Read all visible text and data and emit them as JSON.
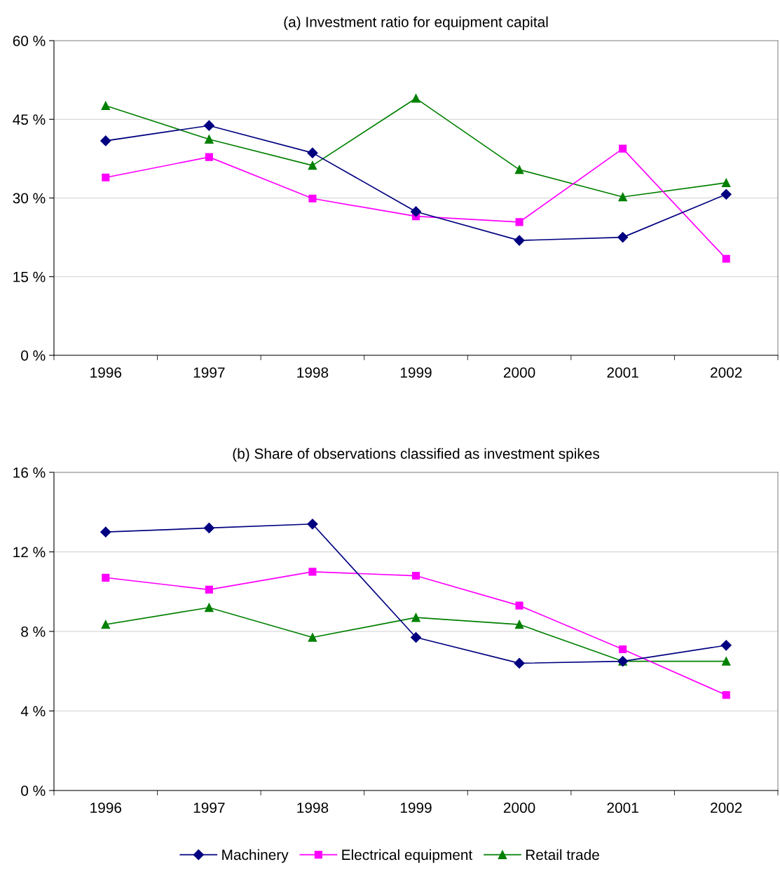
{
  "chart_data": [
    {
      "type": "line",
      "title": "(a) Investment ratio for equipment capital",
      "categories": [
        "1996",
        "1997",
        "1998",
        "1999",
        "2000",
        "2001",
        "2002"
      ],
      "ylim": [
        0,
        60
      ],
      "yticks": [
        {
          "value": 0,
          "label": "0 %"
        },
        {
          "value": 15,
          "label": "15 %"
        },
        {
          "value": 30,
          "label": "30 %"
        },
        {
          "value": 45,
          "label": "45 %"
        },
        {
          "value": 60,
          "label": "60 %"
        }
      ],
      "grid": "y",
      "line_style": "solid",
      "series": [
        {
          "color": "#000080",
          "marker": "diamond",
          "values": [
            40.9,
            43.8,
            38.6,
            27.4,
            21.9,
            22.5,
            30.7
          ]
        },
        {
          "color": "#ff00ff",
          "marker": "square",
          "values": [
            33.9,
            37.8,
            29.9,
            26.5,
            25.4,
            39.4,
            18.4
          ]
        },
        {
          "color": "#008000",
          "marker": "triangle",
          "values": [
            47.6,
            41.2,
            36.2,
            49.0,
            35.4,
            30.2,
            32.9
          ]
        }
      ]
    },
    {
      "type": "line",
      "title": "(b) Share of observations classified as investment spikes",
      "categories": [
        "1996",
        "1997",
        "1998",
        "1999",
        "2000",
        "2001",
        "2002"
      ],
      "ylim": [
        0,
        16
      ],
      "yticks": [
        {
          "value": 0,
          "label": "0 %"
        },
        {
          "value": 4,
          "label": "4 %"
        },
        {
          "value": 8,
          "label": "8 %"
        },
        {
          "value": 12,
          "label": "12 %"
        },
        {
          "value": 16,
          "label": "16 %"
        }
      ],
      "grid": "y",
      "line_style": "solid",
      "legend": "bottom",
      "series": [
        {
          "name": "Machinery",
          "color": "#000080",
          "marker": "diamond",
          "values": [
            13.0,
            13.2,
            13.4,
            7.7,
            6.4,
            6.5,
            7.3
          ]
        },
        {
          "name": "Electrical equipment",
          "color": "#ff00ff",
          "marker": "square",
          "values": [
            10.7,
            10.1,
            11.0,
            10.8,
            9.3,
            7.1,
            4.8
          ]
        },
        {
          "name": "Retail trade",
          "color": "#008000",
          "marker": "triangle",
          "values": [
            8.35,
            9.2,
            7.7,
            8.7,
            8.35,
            6.5,
            6.5
          ]
        }
      ]
    }
  ]
}
